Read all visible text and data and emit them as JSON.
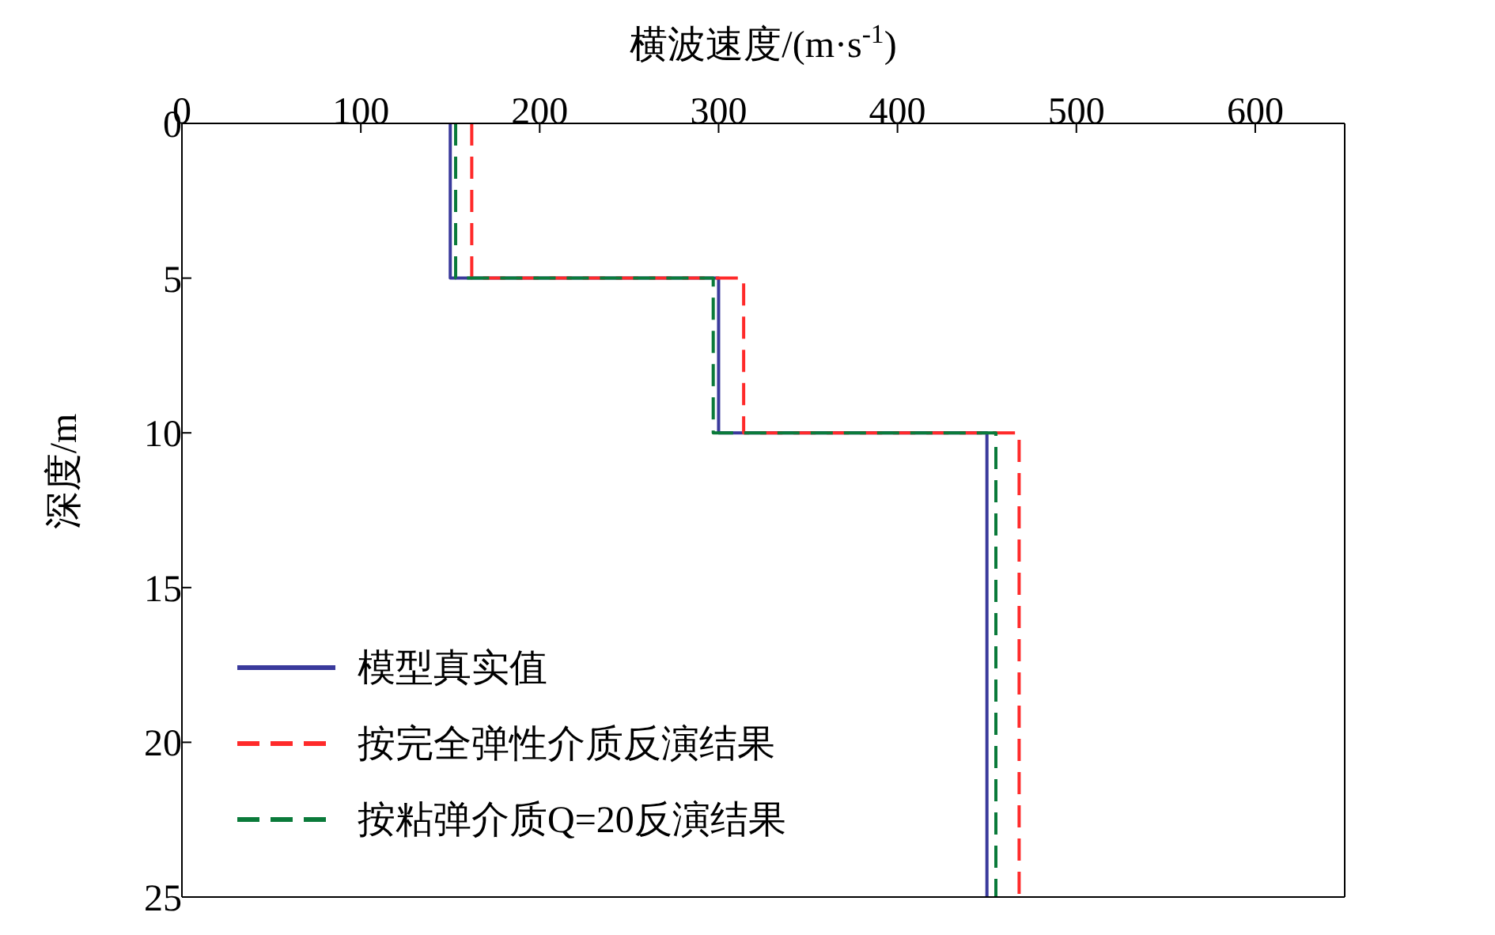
{
  "chart_data": {
    "type": "line",
    "xlabel": "横波速度/(m·s$^{-1}$)",
    "ylabel": "深度/m",
    "xlim": [
      0,
      650
    ],
    "xticks": [
      0,
      100,
      200,
      300,
      400,
      500,
      600
    ],
    "ylim": [
      25,
      0
    ],
    "yticks": [
      0,
      5,
      10,
      15,
      20,
      25
    ],
    "legend": "bottom left",
    "marker": "none",
    "series": [
      {
        "name": "模型真实值",
        "color": "#3a3a9c",
        "line_style": "solid",
        "x": [
          150,
          150,
          300,
          300,
          450,
          450
        ],
        "values": [
          0,
          5,
          5,
          10,
          10,
          25
        ]
      },
      {
        "name": "按完全弹性介质反演结果",
        "color": "#ff2a2a",
        "line_style": "dashed",
        "x": [
          162,
          162,
          314,
          314,
          468,
          468
        ],
        "values": [
          0,
          5,
          5,
          10,
          10,
          25
        ]
      },
      {
        "name": "按粘弹介质Q=20反演结果",
        "color": "#0a7a3a",
        "line_style": "dashed",
        "x": [
          153,
          153,
          297,
          297,
          455,
          455
        ],
        "values": [
          0,
          5,
          5,
          10,
          10,
          25
        ]
      }
    ]
  }
}
